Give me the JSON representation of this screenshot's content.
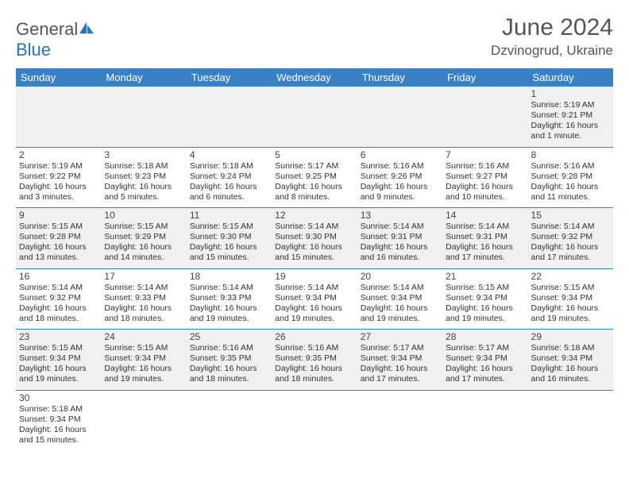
{
  "logo": {
    "text1": "General",
    "text2": "Blue",
    "icon_color": "#2b73b8",
    "text_color": "#555555"
  },
  "title": "June 2024",
  "location": "Dzvinogrud, Ukraine",
  "colors": {
    "header_bg": "#3a81c4",
    "header_fg": "#ffffff",
    "row_odd_bg": "#f0f0f0",
    "row_even_bg": "#ffffff",
    "row_border": "#3a81c4",
    "text": "#333333"
  },
  "day_headers": [
    "Sunday",
    "Monday",
    "Tuesday",
    "Wednesday",
    "Thursday",
    "Friday",
    "Saturday"
  ],
  "weeks": [
    [
      null,
      null,
      null,
      null,
      null,
      null,
      {
        "n": "1",
        "sunrise": "5:19 AM",
        "sunset": "9:21 PM",
        "daylight": "16 hours and 1 minute."
      }
    ],
    [
      {
        "n": "2",
        "sunrise": "5:19 AM",
        "sunset": "9:22 PM",
        "daylight": "16 hours and 3 minutes."
      },
      {
        "n": "3",
        "sunrise": "5:18 AM",
        "sunset": "9:23 PM",
        "daylight": "16 hours and 5 minutes."
      },
      {
        "n": "4",
        "sunrise": "5:18 AM",
        "sunset": "9:24 PM",
        "daylight": "16 hours and 6 minutes."
      },
      {
        "n": "5",
        "sunrise": "5:17 AM",
        "sunset": "9:25 PM",
        "daylight": "16 hours and 8 minutes."
      },
      {
        "n": "6",
        "sunrise": "5:16 AM",
        "sunset": "9:26 PM",
        "daylight": "16 hours and 9 minutes."
      },
      {
        "n": "7",
        "sunrise": "5:16 AM",
        "sunset": "9:27 PM",
        "daylight": "16 hours and 10 minutes."
      },
      {
        "n": "8",
        "sunrise": "5:16 AM",
        "sunset": "9:28 PM",
        "daylight": "16 hours and 11 minutes."
      }
    ],
    [
      {
        "n": "9",
        "sunrise": "5:15 AM",
        "sunset": "9:28 PM",
        "daylight": "16 hours and 13 minutes."
      },
      {
        "n": "10",
        "sunrise": "5:15 AM",
        "sunset": "9:29 PM",
        "daylight": "16 hours and 14 minutes."
      },
      {
        "n": "11",
        "sunrise": "5:15 AM",
        "sunset": "9:30 PM",
        "daylight": "16 hours and 15 minutes."
      },
      {
        "n": "12",
        "sunrise": "5:14 AM",
        "sunset": "9:30 PM",
        "daylight": "16 hours and 15 minutes."
      },
      {
        "n": "13",
        "sunrise": "5:14 AM",
        "sunset": "9:31 PM",
        "daylight": "16 hours and 16 minutes."
      },
      {
        "n": "14",
        "sunrise": "5:14 AM",
        "sunset": "9:31 PM",
        "daylight": "16 hours and 17 minutes."
      },
      {
        "n": "15",
        "sunrise": "5:14 AM",
        "sunset": "9:32 PM",
        "daylight": "16 hours and 17 minutes."
      }
    ],
    [
      {
        "n": "16",
        "sunrise": "5:14 AM",
        "sunset": "9:32 PM",
        "daylight": "16 hours and 18 minutes."
      },
      {
        "n": "17",
        "sunrise": "5:14 AM",
        "sunset": "9:33 PM",
        "daylight": "16 hours and 18 minutes."
      },
      {
        "n": "18",
        "sunrise": "5:14 AM",
        "sunset": "9:33 PM",
        "daylight": "16 hours and 19 minutes."
      },
      {
        "n": "19",
        "sunrise": "5:14 AM",
        "sunset": "9:34 PM",
        "daylight": "16 hours and 19 minutes."
      },
      {
        "n": "20",
        "sunrise": "5:14 AM",
        "sunset": "9:34 PM",
        "daylight": "16 hours and 19 minutes."
      },
      {
        "n": "21",
        "sunrise": "5:15 AM",
        "sunset": "9:34 PM",
        "daylight": "16 hours and 19 minutes."
      },
      {
        "n": "22",
        "sunrise": "5:15 AM",
        "sunset": "9:34 PM",
        "daylight": "16 hours and 19 minutes."
      }
    ],
    [
      {
        "n": "23",
        "sunrise": "5:15 AM",
        "sunset": "9:34 PM",
        "daylight": "16 hours and 19 minutes."
      },
      {
        "n": "24",
        "sunrise": "5:15 AM",
        "sunset": "9:34 PM",
        "daylight": "16 hours and 19 minutes."
      },
      {
        "n": "25",
        "sunrise": "5:16 AM",
        "sunset": "9:35 PM",
        "daylight": "16 hours and 18 minutes."
      },
      {
        "n": "26",
        "sunrise": "5:16 AM",
        "sunset": "9:35 PM",
        "daylight": "16 hours and 18 minutes."
      },
      {
        "n": "27",
        "sunrise": "5:17 AM",
        "sunset": "9:34 PM",
        "daylight": "16 hours and 17 minutes."
      },
      {
        "n": "28",
        "sunrise": "5:17 AM",
        "sunset": "9:34 PM",
        "daylight": "16 hours and 17 minutes."
      },
      {
        "n": "29",
        "sunrise": "5:18 AM",
        "sunset": "9:34 PM",
        "daylight": "16 hours and 16 minutes."
      }
    ],
    [
      {
        "n": "30",
        "sunrise": "5:18 AM",
        "sunset": "9:34 PM",
        "daylight": "16 hours and 15 minutes."
      },
      null,
      null,
      null,
      null,
      null,
      null
    ]
  ],
  "labels": {
    "sunrise": "Sunrise: ",
    "sunset": "Sunset: ",
    "daylight": "Daylight: "
  }
}
